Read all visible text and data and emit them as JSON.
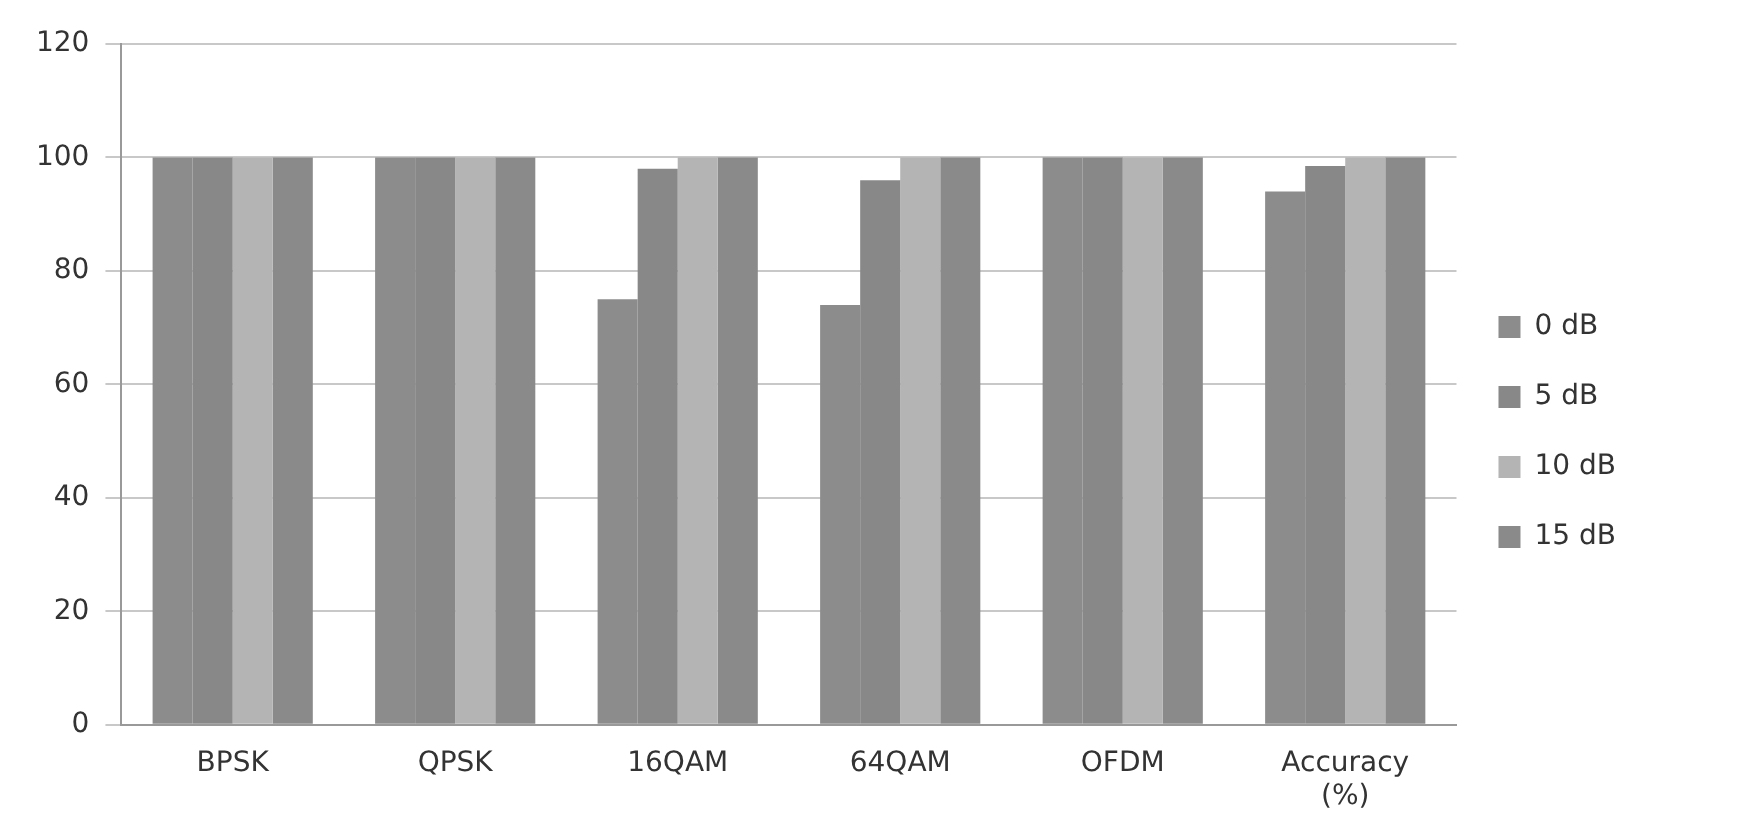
{
  "chart_data": {
    "type": "bar",
    "categories": [
      "BPSK",
      "QPSK",
      "16QAM",
      "64QAM",
      "OFDM",
      "Accuracy (%)"
    ],
    "series": [
      {
        "name": "0 dB",
        "color": "#8c8c8c",
        "values": [
          100,
          100,
          75,
          74,
          100,
          94
        ]
      },
      {
        "name": "5 dB",
        "color": "#888888",
        "values": [
          100,
          100,
          98,
          96,
          100,
          98.5
        ]
      },
      {
        "name": "10 dB",
        "color": "#b4b4b4",
        "values": [
          100,
          100,
          100,
          100,
          100,
          100
        ]
      },
      {
        "name": "15 dB",
        "color": "#8a8a8a",
        "values": [
          100,
          100,
          100,
          100,
          100,
          100
        ]
      }
    ],
    "ylim": [
      0,
      120
    ],
    "yticks": [
      0,
      20,
      40,
      60,
      80,
      100,
      120
    ],
    "grid": "y",
    "legend": "right"
  }
}
